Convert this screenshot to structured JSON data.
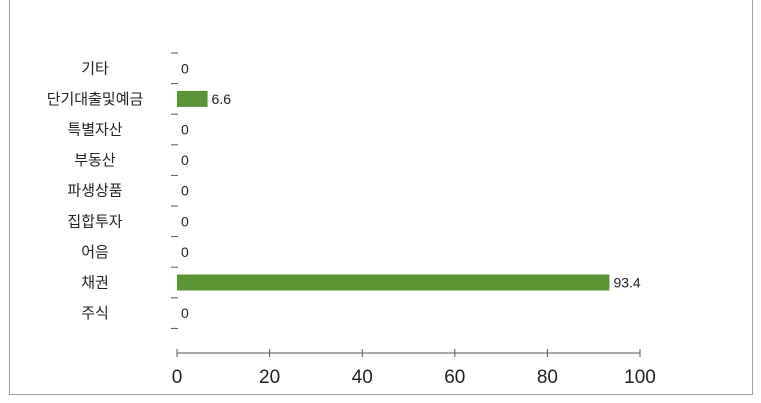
{
  "chart_data": {
    "type": "bar",
    "orientation": "horizontal",
    "categories": [
      "기타",
      "단기대출및예금",
      "특별자산",
      "부동산",
      "파생상품",
      "집합투자",
      "어음",
      "채권",
      "주식"
    ],
    "values": [
      0,
      6.6,
      0,
      0,
      0,
      0,
      0,
      93.4,
      0
    ],
    "value_labels": [
      "0",
      "6.6",
      "0",
      "0",
      "0",
      "0",
      "0",
      "93.4",
      "0"
    ],
    "x_ticks": [
      "0",
      "20",
      "40",
      "60",
      "80",
      "100"
    ],
    "xlim": [
      0,
      100
    ],
    "bar_color": "#5a9433",
    "grid": false,
    "legend": "none"
  }
}
